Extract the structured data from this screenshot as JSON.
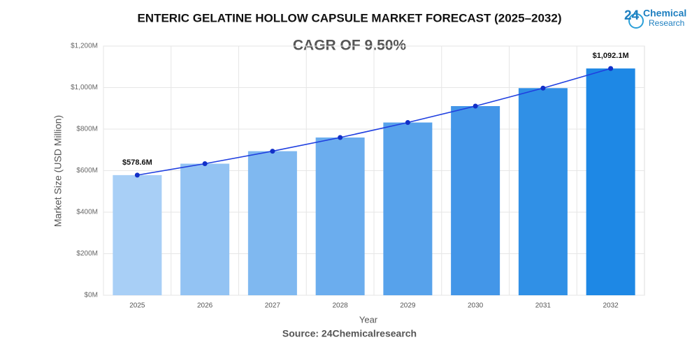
{
  "chart_data": {
    "type": "bar",
    "title": "ENTERIC GELATINE HOLLOW CAPSULE MARKET FORECAST (2025–2032)",
    "subtitle": "CAGR OF 9.50%",
    "x_label": "Year",
    "y_label": "Market Size (USD Million)",
    "categories": [
      "2025",
      "2026",
      "2027",
      "2028",
      "2029",
      "2030",
      "2031",
      "2032"
    ],
    "values": [
      578.6,
      633.6,
      693.8,
      759.7,
      831.9,
      910.9,
      997.4,
      1092.1
    ],
    "value_labels": [
      "$578.6M",
      null,
      null,
      null,
      null,
      null,
      null,
      "$1,092.1M"
    ],
    "colors": [
      "#a8cff6",
      "#93c3f3",
      "#7fb8f0",
      "#6badee",
      "#57a2eb",
      "#4396e8",
      "#3090e6",
      "#1e88e5"
    ],
    "line": true,
    "line_color": "#1f3fe0",
    "point_color": "#1230c8",
    "ylim": [
      0,
      1200
    ],
    "yticks": [
      {
        "value": 0,
        "label": "$0M"
      },
      {
        "value": 200,
        "label": "$200M"
      },
      {
        "value": 400,
        "label": "$400M"
      },
      {
        "value": 600,
        "label": "$600M"
      },
      {
        "value": 800,
        "label": "$800M"
      },
      {
        "value": 1000,
        "label": "$1,000M"
      },
      {
        "value": 1200,
        "label": "$1,200M"
      }
    ],
    "grid": true
  },
  "source": "Source: 24Chemicalresearch",
  "logo": {
    "number": "24",
    "line1": "Chemical",
    "line2": "Research"
  }
}
